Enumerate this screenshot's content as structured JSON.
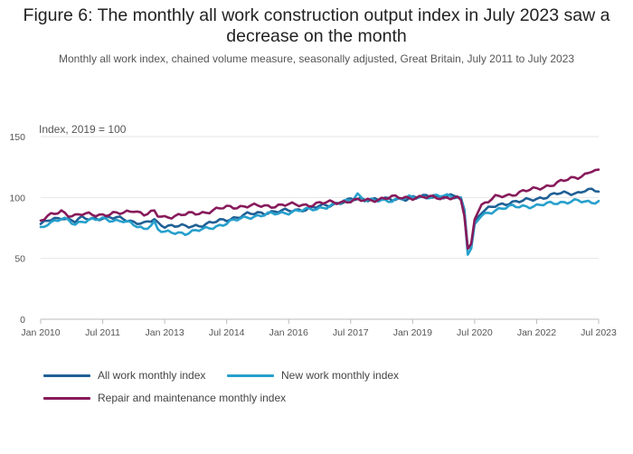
{
  "chart_data": {
    "type": "line",
    "title": "Figure 6: The monthly all work construction output index in July 2023 saw a decrease on the month",
    "subtitle": "Monthly all work index, chained volume measure, seasonally adjusted, Great Britain, July 2011 to July 2023",
    "ylabel": "Index, 2019 = 100",
    "xlabel": "",
    "ylim": [
      0,
      150
    ],
    "yticks": [
      "0",
      "50",
      "100",
      "150"
    ],
    "x_start": "Jan 2010",
    "x_end": "Jul 2023",
    "xticks": [
      "Jan 2010",
      "Jul 2011",
      "Jan 2013",
      "Jul 2014",
      "Jan 2016",
      "Jul 2017",
      "Jan 2019",
      "Jul 2020",
      "Jan 2022",
      "Jul 2023"
    ],
    "xtick_months": [
      0,
      18,
      36,
      54,
      72,
      90,
      108,
      126,
      144,
      162
    ],
    "series": [
      {
        "name": "All work monthly index",
        "color": "#206095",
        "keyframes": [
          [
            0,
            77
          ],
          [
            2,
            81
          ],
          [
            6,
            84
          ],
          [
            8,
            82
          ],
          [
            10,
            80
          ],
          [
            12,
            83
          ],
          [
            18,
            83
          ],
          [
            24,
            83
          ],
          [
            27,
            80
          ],
          [
            30,
            78
          ],
          [
            33,
            82
          ],
          [
            34,
            79
          ],
          [
            36,
            77
          ],
          [
            42,
            76
          ],
          [
            48,
            78
          ],
          [
            54,
            82
          ],
          [
            60,
            86
          ],
          [
            66,
            88
          ],
          [
            72,
            89
          ],
          [
            78,
            91
          ],
          [
            84,
            94
          ],
          [
            90,
            98
          ],
          [
            96,
            99
          ],
          [
            102,
            98
          ],
          [
            108,
            100
          ],
          [
            114,
            101
          ],
          [
            120,
            101
          ],
          [
            122,
            100
          ],
          [
            123,
            90
          ],
          [
            124,
            58
          ],
          [
            125,
            60
          ],
          [
            126,
            80
          ],
          [
            128,
            88
          ],
          [
            132,
            93
          ],
          [
            136,
            96
          ],
          [
            140,
            97
          ],
          [
            144,
            99
          ],
          [
            150,
            103
          ],
          [
            156,
            104
          ],
          [
            158,
            106
          ],
          [
            162,
            105
          ]
        ]
      },
      {
        "name": "New work monthly index",
        "color": "#27a0cc",
        "keyframes": [
          [
            0,
            75
          ],
          [
            2,
            79
          ],
          [
            6,
            82
          ],
          [
            8,
            81
          ],
          [
            10,
            78
          ],
          [
            12,
            81
          ],
          [
            18,
            82
          ],
          [
            24,
            81
          ],
          [
            27,
            77
          ],
          [
            30,
            74
          ],
          [
            33,
            80
          ],
          [
            34,
            74
          ],
          [
            36,
            71
          ],
          [
            42,
            71
          ],
          [
            48,
            74
          ],
          [
            54,
            79
          ],
          [
            60,
            84
          ],
          [
            66,
            86
          ],
          [
            72,
            88
          ],
          [
            78,
            90
          ],
          [
            84,
            93
          ],
          [
            90,
            98
          ],
          [
            92,
            103
          ],
          [
            94,
            98
          ],
          [
            96,
            97
          ],
          [
            102,
            98
          ],
          [
            108,
            100
          ],
          [
            114,
            101
          ],
          [
            120,
            101
          ],
          [
            122,
            100
          ],
          [
            123,
            88
          ],
          [
            124,
            53
          ],
          [
            125,
            58
          ],
          [
            126,
            78
          ],
          [
            128,
            85
          ],
          [
            132,
            90
          ],
          [
            136,
            92
          ],
          [
            140,
            93
          ],
          [
            144,
            93
          ],
          [
            150,
            96
          ],
          [
            156,
            97
          ],
          [
            158,
            96
          ],
          [
            162,
            97
          ]
        ]
      },
      {
        "name": "Repair and maintenance monthly index",
        "color": "#871a5b",
        "keyframes": [
          [
            0,
            81
          ],
          [
            2,
            84
          ],
          [
            6,
            89
          ],
          [
            8,
            86
          ],
          [
            10,
            85
          ],
          [
            12,
            86
          ],
          [
            18,
            86
          ],
          [
            24,
            87
          ],
          [
            27,
            90
          ],
          [
            30,
            86
          ],
          [
            33,
            88
          ],
          [
            34,
            85
          ],
          [
            36,
            84
          ],
          [
            42,
            86
          ],
          [
            48,
            88
          ],
          [
            54,
            92
          ],
          [
            60,
            93
          ],
          [
            66,
            93
          ],
          [
            72,
            94
          ],
          [
            78,
            94
          ],
          [
            84,
            96
          ],
          [
            90,
            97
          ],
          [
            96,
            98
          ],
          [
            102,
            100
          ],
          [
            108,
            100
          ],
          [
            114,
            100
          ],
          [
            120,
            100
          ],
          [
            122,
            98
          ],
          [
            123,
            85
          ],
          [
            124,
            58
          ],
          [
            125,
            62
          ],
          [
            126,
            82
          ],
          [
            128,
            94
          ],
          [
            132,
            100
          ],
          [
            136,
            102
          ],
          [
            140,
            105
          ],
          [
            144,
            107
          ],
          [
            150,
            112
          ],
          [
            156,
            117
          ],
          [
            158,
            119
          ],
          [
            160,
            122
          ],
          [
            162,
            121
          ]
        ]
      }
    ]
  },
  "legend": {
    "items": [
      {
        "label": "All work monthly index",
        "color": "#206095"
      },
      {
        "label": "New work monthly index",
        "color": "#27a0cc"
      },
      {
        "label": "Repair and maintenance monthly index",
        "color": "#871a5b"
      }
    ]
  }
}
